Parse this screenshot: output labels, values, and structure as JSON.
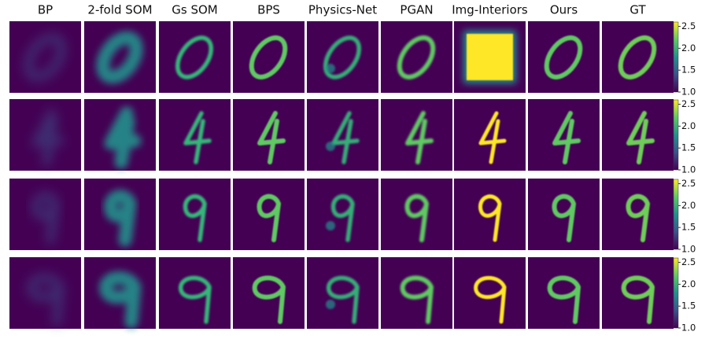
{
  "columns": [
    "BP",
    "2-fold SOM",
    "Gs SOM",
    "BPS",
    "Physics-Net",
    "PGAN",
    "Img-Interiors",
    "Ours",
    "GT"
  ],
  "colorbar": {
    "clim": [
      1.0,
      2.6
    ],
    "ticks": [
      {
        "value": 1.0,
        "label": "1.0"
      },
      1.5,
      {
        "value": 2.0,
        "label": "2.0"
      },
      2.5
    ]
  }
}
